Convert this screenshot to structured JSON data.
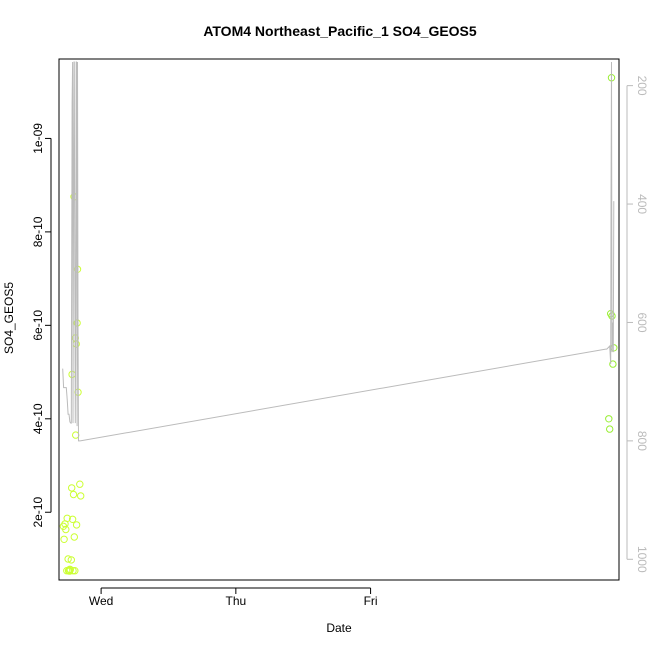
{
  "chart_data": {
    "type": "scatter",
    "title": "ATOM4 Northeast_Pacific_1 SO4_GEOS5",
    "xlabel": "Date",
    "ylabel": "SO4_GEOS5",
    "x_axis": {
      "type": "date",
      "range": [
        "Tuesday 16:30",
        "Saturday 20:15"
      ],
      "ticks": [
        {
          "label": "Wed",
          "value": "Wednesday 00:00"
        },
        {
          "label": "Thu",
          "value": "Thursday 00:00"
        },
        {
          "label": "Fri",
          "value": "Friday 00:00"
        }
      ]
    },
    "y_axis_left": {
      "range": [
        5.5e-11,
        1.17e-09
      ],
      "ticks": [
        {
          "label": "2e-10",
          "value": 2e-10
        },
        {
          "label": "4e-10",
          "value": 4e-10
        },
        {
          "label": "6e-10",
          "value": 6e-10
        },
        {
          "label": "8e-10",
          "value": 8e-10
        },
        {
          "label": "1e-09",
          "value": 1e-09
        }
      ]
    },
    "y_axis_right": {
      "reversed": true,
      "range": [
        1035,
        155
      ],
      "ticks": [
        {
          "label": "200",
          "value": 200
        },
        {
          "label": "400",
          "value": 400
        },
        {
          "label": "600",
          "value": 600
        },
        {
          "label": "800",
          "value": 800
        },
        {
          "label": "1000",
          "value": 1000
        }
      ]
    },
    "grid": false,
    "series": [
      {
        "kind": "points",
        "color": "#ccff33",
        "points": [
          {
            "x": "Tuesday 17:17",
            "y": 1.7e-10
          },
          {
            "x": "Tuesday 17:24",
            "y": 1.42e-10
          },
          {
            "x": "Tuesday 17:34",
            "y": 1.75e-10
          },
          {
            "x": "Tuesday 17:43",
            "y": 1.63e-10
          },
          {
            "x": "Tuesday 17:53",
            "y": 7.5e-11
          },
          {
            "x": "Tuesday 17:58",
            "y": 1.87e-10
          },
          {
            "x": "Tuesday 18:07",
            "y": 1e-10
          },
          {
            "x": "Tuesday 18:12",
            "y": 7.5e-11
          },
          {
            "x": "Tuesday 18:17",
            "y": 7.6e-11
          },
          {
            "x": "Tuesday 18:22",
            "y": 7.4e-11
          },
          {
            "x": "Tuesday 18:26",
            "y": 7.8e-11
          },
          {
            "x": "Tuesday 18:31",
            "y": 7.7e-11
          },
          {
            "x": "Tuesday 18:41",
            "y": 9.8e-11
          },
          {
            "x": "Tuesday 18:46",
            "y": 2.52e-10
          },
          {
            "x": "Tuesday 18:50",
            "y": 4.95e-10
          },
          {
            "x": "Tuesday 18:55",
            "y": 1.85e-10
          },
          {
            "x": "Tuesday 19:00",
            "y": 7.5e-11
          },
          {
            "x": "Tuesday 19:05",
            "y": 2.38e-10
          },
          {
            "x": "Tuesday 19:10",
            "y": 8.75e-10
          },
          {
            "x": "Tuesday 19:14",
            "y": 1.47e-10
          },
          {
            "x": "Tuesday 19:19",
            "y": 7.5e-11
          },
          {
            "x": "Tuesday 19:24",
            "y": 5.73e-10
          },
          {
            "x": "Tuesday 19:29",
            "y": 3.65e-10
          },
          {
            "x": "Tuesday 19:34",
            "y": 5.6e-10
          },
          {
            "x": "Tuesday 19:38",
            "y": 1.73e-10
          },
          {
            "x": "Tuesday 19:43",
            "y": 6.05e-10
          },
          {
            "x": "Tuesday 19:48",
            "y": 7.2e-10
          },
          {
            "x": "Tuesday 19:53",
            "y": 4.57e-10
          },
          {
            "x": "Tuesday 20:12",
            "y": 2.6e-10
          },
          {
            "x": "Tuesday 20:22",
            "y": 2.35e-10
          }
        ]
      },
      {
        "kind": "points",
        "color": "#99ee33",
        "points": [
          {
            "x": "Saturday 18:26",
            "y": 4e-10
          },
          {
            "x": "Saturday 18:36",
            "y": 3.78e-10
          },
          {
            "x": "Saturday 18:46",
            "y": 6.25e-10
          },
          {
            "x": "Saturday 18:55",
            "y": 1.13e-09
          },
          {
            "x": "Saturday 19:00",
            "y": 6.2e-10
          },
          {
            "x": "Saturday 19:10",
            "y": 5.17e-10
          },
          {
            "x": "Saturday 19:19",
            "y": 5.52e-10
          }
        ]
      },
      {
        "kind": "line",
        "axis": "right",
        "color": "#bbbbbb",
        "points": [
          {
            "x": "Tuesday 17:10",
            "y": 678
          },
          {
            "x": "Tuesday 17:19",
            "y": 710
          },
          {
            "x": "Tuesday 17:34",
            "y": 710
          },
          {
            "x": "Tuesday 17:48",
            "y": 710
          },
          {
            "x": "Tuesday 17:58",
            "y": 730
          },
          {
            "x": "Tuesday 18:07",
            "y": 755
          },
          {
            "x": "Tuesday 18:17",
            "y": 755
          },
          {
            "x": "Tuesday 18:26",
            "y": 768
          },
          {
            "x": "Tuesday 18:36",
            "y": 770
          },
          {
            "x": "Tuesday 18:41",
            "y": 770
          },
          {
            "x": "Tuesday 18:50",
            "y": 230
          },
          {
            "x": "Tuesday 18:55",
            "y": 160
          },
          {
            "x": "Tuesday 19:00",
            "y": 770
          },
          {
            "x": "Tuesday 19:05",
            "y": 430
          },
          {
            "x": "Tuesday 19:10",
            "y": 160
          },
          {
            "x": "Tuesday 19:14",
            "y": 160
          },
          {
            "x": "Tuesday 19:19",
            "y": 530
          },
          {
            "x": "Tuesday 19:24",
            "y": 770
          },
          {
            "x": "Tuesday 19:29",
            "y": 600
          },
          {
            "x": "Tuesday 19:34",
            "y": 160
          },
          {
            "x": "Tuesday 19:38",
            "y": 160
          },
          {
            "x": "Tuesday 19:43",
            "y": 775
          },
          {
            "x": "Tuesday 19:48",
            "y": 160
          },
          {
            "x": "Tuesday 19:53",
            "y": 600
          },
          {
            "x": "Tuesday 19:58",
            "y": 800
          },
          {
            "x": "Tuesday 20:17",
            "y": 800
          },
          {
            "x": "Saturday 17:53",
            "y": 645
          },
          {
            "x": "Saturday 18:05",
            "y": 645
          },
          {
            "x": "Saturday 18:36",
            "y": 640
          },
          {
            "x": "Saturday 18:46",
            "y": 670
          },
          {
            "x": "Saturday 18:50",
            "y": 400
          },
          {
            "x": "Saturday 18:55",
            "y": 160
          },
          {
            "x": "Saturday 19:00",
            "y": 650
          },
          {
            "x": "Saturday 19:05",
            "y": 620
          },
          {
            "x": "Saturday 19:10",
            "y": 600
          },
          {
            "x": "Saturday 19:14",
            "y": 650
          },
          {
            "x": "Saturday 19:19",
            "y": 395
          }
        ]
      }
    ]
  }
}
